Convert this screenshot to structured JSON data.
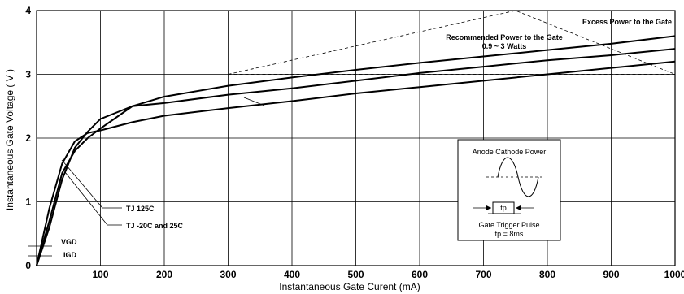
{
  "chart_data": {
    "type": "line",
    "xlabel": "Instantaneous Gate Curent (mA)",
    "ylabel": "Instantaneous Gate Voltage ( V )",
    "xlim": [
      0,
      1000
    ],
    "ylim": [
      0,
      4
    ],
    "x_ticks": [
      "100",
      "200",
      "300",
      "400",
      "500",
      "600",
      "700",
      "800",
      "900",
      "1000"
    ],
    "y_ticks": [
      "0",
      "1",
      "2",
      "3",
      "4"
    ],
    "grid": true,
    "series": [
      {
        "name": "TJ 125C",
        "x": [
          0,
          20,
          40,
          60,
          80,
          100,
          150,
          200,
          300,
          400,
          500,
          600,
          700,
          800,
          900,
          1000
        ],
        "y": [
          0,
          0.6,
          1.35,
          1.85,
          2.1,
          2.3,
          2.5,
          2.65,
          2.82,
          2.95,
          3.07,
          3.18,
          3.28,
          3.38,
          3.48,
          3.6
        ]
      },
      {
        "name": "TJ -20C and 25C",
        "x": [
          0,
          20,
          40,
          60,
          80,
          100,
          150,
          200,
          300,
          400,
          500,
          600,
          700,
          800,
          900,
          1000
        ],
        "y": [
          0,
          0.9,
          1.6,
          1.95,
          2.08,
          2.12,
          2.25,
          2.35,
          2.47,
          2.58,
          2.7,
          2.8,
          2.9,
          3.0,
          3.1,
          3.2
        ]
      },
      {
        "name": "",
        "x": [
          0,
          20,
          40,
          60,
          80,
          100,
          150,
          200,
          300,
          400,
          500,
          600,
          700,
          800,
          900,
          1000
        ],
        "y": [
          0,
          0.7,
          1.45,
          1.8,
          2.0,
          2.15,
          2.5,
          2.55,
          2.68,
          2.78,
          2.9,
          3.02,
          3.12,
          3.22,
          3.3,
          3.4
        ]
      }
    ],
    "power_curves": [
      {
        "name": "Excess Power to the Gate",
        "x": [
          300,
          750,
          1000
        ],
        "y": [
          3.0,
          4.0,
          3.0
        ]
      },
      {
        "name": "Recommended Power to the Gate",
        "x": [
          300,
          1000
        ],
        "y": [
          3.0,
          3.0
        ]
      }
    ],
    "annotations": {
      "excess_power": "Excess Power to the Gate",
      "recommended_power": "Recommended Power to the Gate",
      "watts_range": "0.9 ~ 3 Watts",
      "tj_125": "TJ 125C",
      "tj_low": "TJ -20C and 25C",
      "vgd": "VGD",
      "igd": "IGD"
    },
    "inset": {
      "title": "Anode Cathode Power",
      "pulse_label": "tp",
      "trigger_label": "Gate Trigger Pulse",
      "tp_value": "tp = 8ms"
    }
  }
}
